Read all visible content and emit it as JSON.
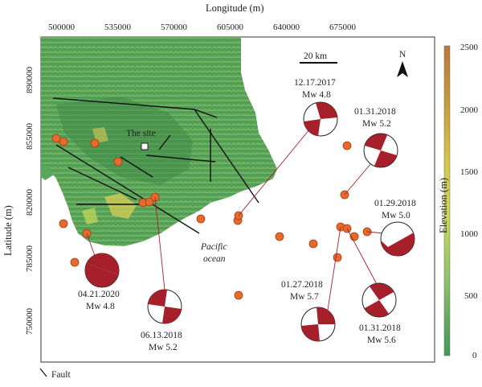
{
  "axes": {
    "x_title": "Longitude (m)",
    "y_title": "Latitude (m)",
    "x_ticks": [
      "500000",
      "535000",
      "570000",
      "605000",
      "640000",
      "675000"
    ],
    "y_ticks": [
      "890000",
      "855000",
      "820000",
      "785000",
      "750000"
    ]
  },
  "colorbar": {
    "title": "Elevation (m)",
    "ticks": [
      "2500",
      "2000",
      "1500",
      "1000",
      "500",
      "0"
    ],
    "colors": [
      "#b9793a",
      "#c79a3c",
      "#d7c74a",
      "#c9d85a",
      "#8fc46b",
      "#5ea85c",
      "#3f9a55"
    ]
  },
  "map": {
    "site_label": "The site",
    "ocean_label": "Pacific\nocean",
    "ocean_line1": "Pacific",
    "ocean_line2": "ocean",
    "scale_label": "20 km",
    "north_label": "N",
    "sea_color": "#ffffff",
    "event_color": "#e8692c",
    "beachball_color": "#a5202a"
  },
  "events": [
    {
      "date": "12.17.2017",
      "magnitude": "Mw 4.8"
    },
    {
      "date": "01.31.2018",
      "magnitude": "Mw 5.2"
    },
    {
      "date": "01.29.2018",
      "magnitude": "Mw 5.0"
    },
    {
      "date": "01.27.2018",
      "magnitude": "Mw 5.7"
    },
    {
      "date": "01.31.2018",
      "magnitude": "Mw 5.6"
    },
    {
      "date": "06.13.2018",
      "magnitude": "Mw 5.2"
    },
    {
      "date": "04.21.2020",
      "magnitude": "Mw 4.8"
    }
  ],
  "legend": {
    "fault_label": "Fault"
  }
}
